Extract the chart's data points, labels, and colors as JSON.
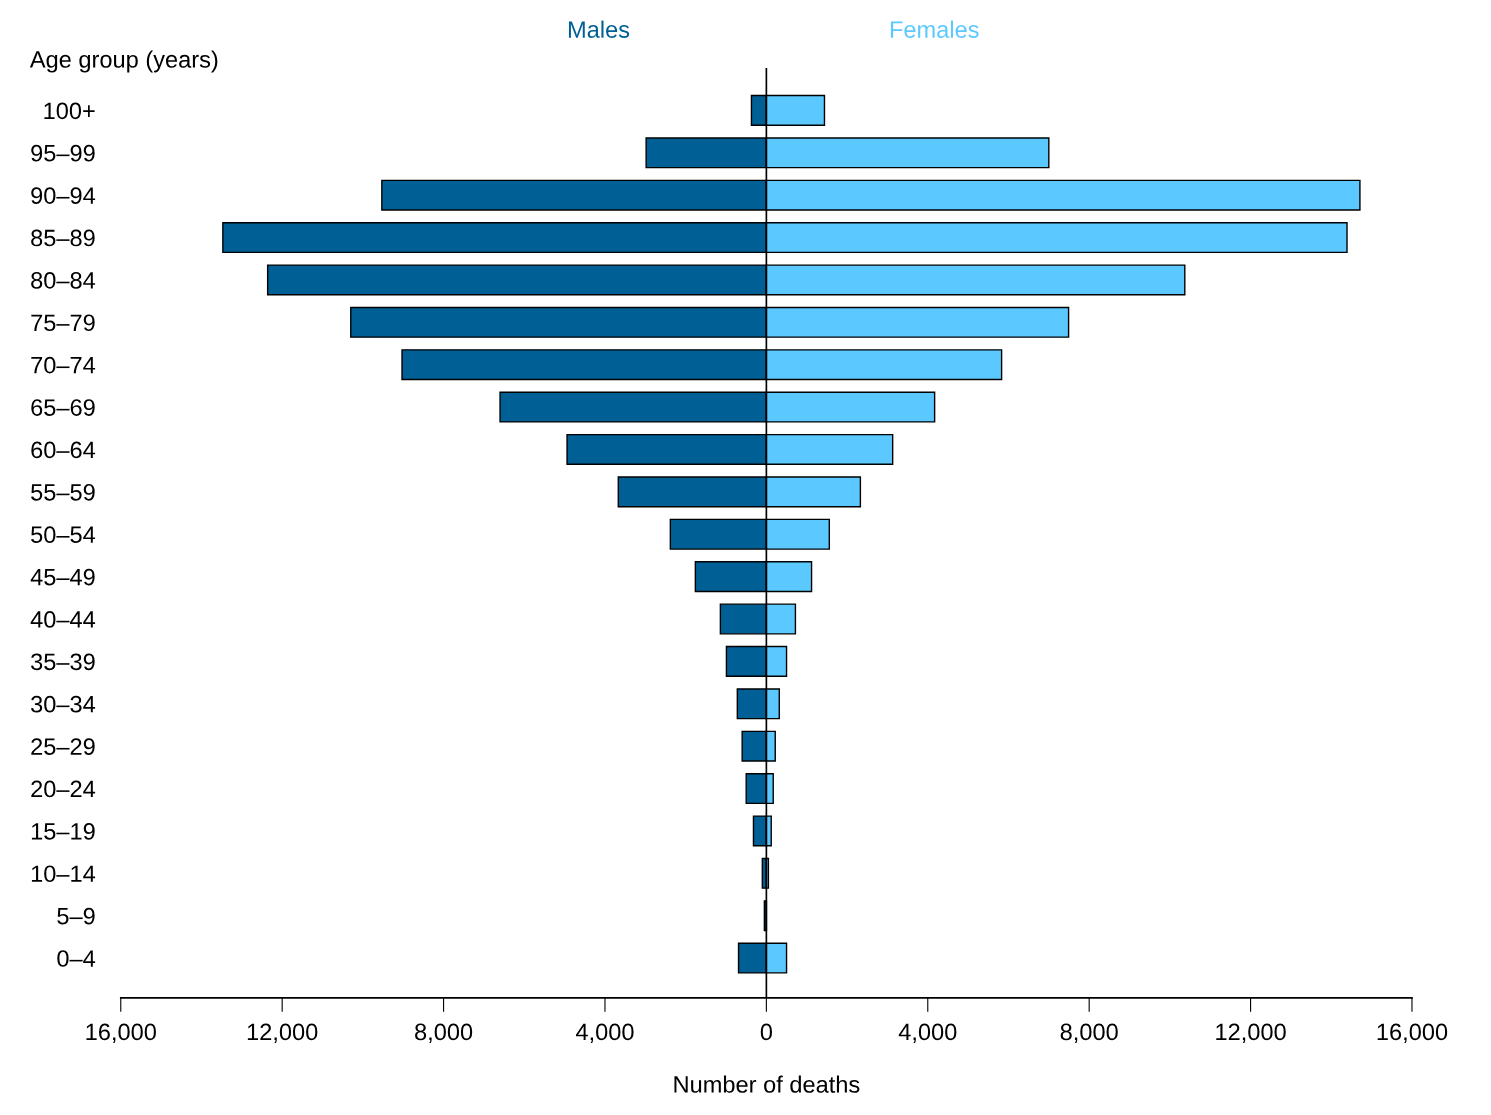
{
  "chart_data": {
    "type": "bar",
    "orientation": "horizontal",
    "xlabel": "Number of deaths",
    "ylabel": "Age group (years)",
    "categories": [
      "100+",
      "95–99",
      "90–94",
      "85–89",
      "80–84",
      "75–79",
      "70–74",
      "65–69",
      "60–64",
      "55–59",
      "50–54",
      "45–49",
      "40–44",
      "35–39",
      "30–34",
      "25–29",
      "20–24",
      "15–19",
      "10–14",
      "5–9",
      "0–4"
    ],
    "series": [
      {
        "name": "Males",
        "color": "#005f94",
        "values": [
          -370,
          -2980,
          -9530,
          -13470,
          -12360,
          -10300,
          -9030,
          -6600,
          -4940,
          -3670,
          -2380,
          -1760,
          -1140,
          -990,
          -720,
          -600,
          -500,
          -320,
          -100,
          -50,
          -690
        ]
      },
      {
        "name": "Females",
        "color": "#5bc8ff",
        "values": [
          1440,
          7000,
          14710,
          14390,
          10370,
          7490,
          5830,
          4170,
          3130,
          2330,
          1560,
          1120,
          720,
          500,
          320,
          220,
          170,
          120,
          50,
          null,
          500
        ]
      }
    ],
    "xlim": [
      -16000,
      16000
    ],
    "xticks": [
      {
        "value": -16000,
        "label": "16,000"
      },
      {
        "value": -12000,
        "label": "12,000"
      },
      {
        "value": -8000,
        "label": "8,000"
      },
      {
        "value": -4000,
        "label": "4,000"
      },
      {
        "value": 0,
        "label": "0"
      },
      {
        "value": 4000,
        "label": "4,000"
      },
      {
        "value": 8000,
        "label": "8,000"
      },
      {
        "value": 12000,
        "label": "12,000"
      },
      {
        "value": 16000,
        "label": "16,000"
      }
    ],
    "ref_lines": [
      {
        "axis": "x",
        "value": 0,
        "color": "#000000"
      }
    ],
    "stacked": true,
    "grid": false,
    "legend": false
  }
}
